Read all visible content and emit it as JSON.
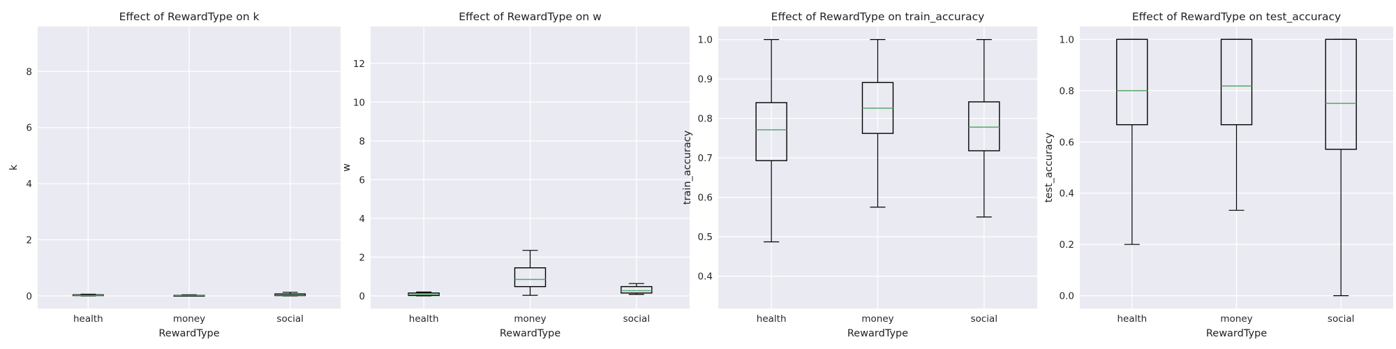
{
  "chart_data": [
    {
      "type": "box",
      "title": "Effect of RewardType on k",
      "xlabel": "RewardType",
      "ylabel": "k",
      "categories": [
        "health",
        "money",
        "social"
      ],
      "ylim": [
        -0.45,
        9.6
      ],
      "yticks": [
        0,
        2,
        4,
        6,
        8
      ],
      "boxes": [
        {
          "whislo": 0.0,
          "q1": 0.01,
          "med": 0.02,
          "q3": 0.04,
          "whishi": 0.06
        },
        {
          "whislo": 0.0,
          "q1": 0.0,
          "med": 0.01,
          "q3": 0.02,
          "whishi": 0.04
        },
        {
          "whislo": 0.0,
          "q1": 0.01,
          "med": 0.03,
          "q3": 0.07,
          "whishi": 0.13
        }
      ]
    },
    {
      "type": "box",
      "title": "Effect of RewardType on w",
      "xlabel": "RewardType",
      "ylabel": "w",
      "categories": [
        "health",
        "money",
        "social"
      ],
      "ylim": [
        -0.65,
        13.9
      ],
      "yticks": [
        0,
        2,
        4,
        6,
        8,
        10,
        12
      ],
      "boxes": [
        {
          "whislo": 0.0,
          "q1": 0.02,
          "med": 0.07,
          "q3": 0.15,
          "whishi": 0.2
        },
        {
          "whislo": 0.03,
          "q1": 0.48,
          "med": 0.85,
          "q3": 1.45,
          "whishi": 2.35
        },
        {
          "whislo": 0.08,
          "q1": 0.15,
          "med": 0.27,
          "q3": 0.48,
          "whishi": 0.64
        }
      ]
    },
    {
      "type": "box",
      "title": "Effect of RewardType on train_accuracy",
      "xlabel": "RewardType",
      "ylabel": "train_accuracy",
      "categories": [
        "health",
        "money",
        "social"
      ],
      "ylim": [
        0.318,
        1.033
      ],
      "yticks": [
        0.4,
        0.5,
        0.6,
        0.7,
        0.8,
        0.9,
        1.0
      ],
      "ytick_labels": [
        "0.4",
        "0.5",
        "0.6",
        "0.7",
        "0.8",
        "0.9",
        "1.0"
      ],
      "boxes": [
        {
          "whislo": 0.487,
          "q1": 0.693,
          "med": 0.771,
          "q3": 0.84,
          "whishi": 1.0
        },
        {
          "whislo": 0.575,
          "q1": 0.762,
          "med": 0.826,
          "q3": 0.891,
          "whishi": 1.0
        },
        {
          "whislo": 0.55,
          "q1": 0.718,
          "med": 0.778,
          "q3": 0.842,
          "whishi": 1.0
        }
      ]
    },
    {
      "type": "box",
      "title": "Effect of RewardType on test_accuracy",
      "xlabel": "RewardType",
      "ylabel": "test_accuracy",
      "categories": [
        "health",
        "money",
        "social"
      ],
      "ylim": [
        -0.05,
        1.05
      ],
      "yticks": [
        0.0,
        0.2,
        0.4,
        0.6,
        0.8,
        1.0
      ],
      "ytick_labels": [
        "0.0",
        "0.2",
        "0.4",
        "0.6",
        "0.8",
        "1.0"
      ],
      "boxes": [
        {
          "whislo": 0.2,
          "q1": 0.667,
          "med": 0.8,
          "q3": 1.0,
          "whishi": 1.0
        },
        {
          "whislo": 0.333,
          "q1": 0.667,
          "med": 0.818,
          "q3": 1.0,
          "whishi": 1.0
        },
        {
          "whislo": 0.0,
          "q1": 0.571,
          "med": 0.75,
          "q3": 1.0,
          "whishi": 1.0
        }
      ]
    }
  ],
  "colors": {
    "plot_background": "#eaeaf2",
    "grid": "#ffffff",
    "box": "#000000",
    "median": "#55a868",
    "text": "#222222"
  }
}
